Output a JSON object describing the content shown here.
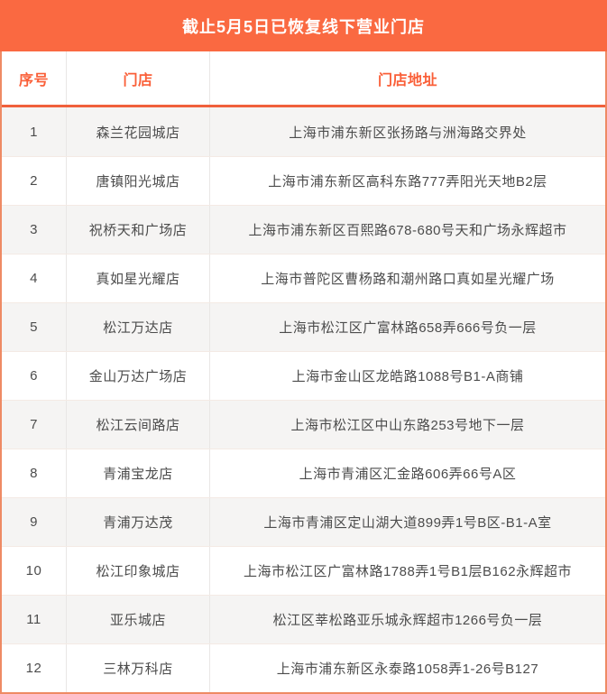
{
  "chart_data": {
    "type": "table",
    "title": "截止5月5日已恢复线下营业门店",
    "columns": [
      "序号",
      "门店",
      "门店地址"
    ],
    "rows": [
      {
        "no": "1",
        "store": "森兰花园城店",
        "address": "上海市浦东新区张扬路与洲海路交界处"
      },
      {
        "no": "2",
        "store": "唐镇阳光城店",
        "address": "上海市浦东新区高科东路777弄阳光天地B2层"
      },
      {
        "no": "3",
        "store": "祝桥天和广场店",
        "address": "上海市浦东新区百熙路678-680号天和广场永辉超市"
      },
      {
        "no": "4",
        "store": "真如星光耀店",
        "address": "上海市普陀区曹杨路和潮州路口真如星光耀广场"
      },
      {
        "no": "5",
        "store": "松江万达店",
        "address": "上海市松江区广富林路658弄666号负一层"
      },
      {
        "no": "6",
        "store": "金山万达广场店",
        "address": "上海市金山区龙皓路1088号B1-A商铺"
      },
      {
        "no": "7",
        "store": "松江云间路店",
        "address": "上海市松江区中山东路253号地下一层"
      },
      {
        "no": "8",
        "store": "青浦宝龙店",
        "address": "上海市青浦区汇金路606弄66号A区"
      },
      {
        "no": "9",
        "store": "青浦万达茂",
        "address": "上海市青浦区定山湖大道899弄1号B区-B1-A室"
      },
      {
        "no": "10",
        "store": "松江印象城店",
        "address": "上海市松江区广富林路1788弄1号B1层B162永辉超市"
      },
      {
        "no": "11",
        "store": "亚乐城店",
        "address": "松江区莘松路亚乐城永辉超市1266号负一层"
      },
      {
        "no": "12",
        "store": "三林万科店",
        "address": "上海市浦东新区永泰路1058弄1-26号B127"
      }
    ]
  },
  "colors": {
    "title_bar_bg": "#FA6941",
    "title_text": "#FFFFFF",
    "header_label_text": "#FA5F38",
    "header_divider_line": "#F0603C",
    "outer_border": "#EE8A64",
    "alt_row_bg": "#F5F4F3",
    "cell_text": "#4C4C4C",
    "grid_line": "#E9E7E5"
  }
}
